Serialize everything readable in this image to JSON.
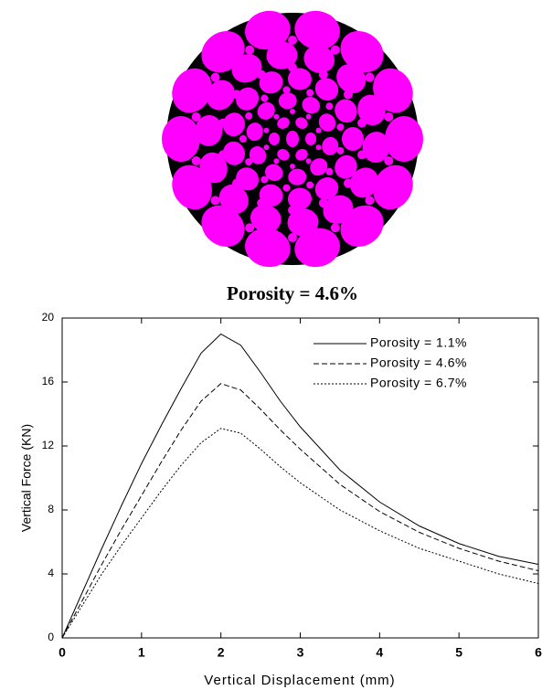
{
  "figure": {
    "caption": "Porosity = 4.6%"
  },
  "chart_data": {
    "type": "line",
    "xlabel": "Vertical Displacement (mm)",
    "ylabel": "Vertical Force (KN)",
    "x": [
      0,
      0.25,
      0.5,
      0.75,
      1,
      1.25,
      1.5,
      1.75,
      2,
      2.25,
      2.5,
      2.75,
      3,
      3.5,
      4,
      4.5,
      5,
      5.5,
      6
    ],
    "series": [
      {
        "name": "Porosity = 1.1%",
        "color": "#000000",
        "dash": "solid",
        "values": [
          0,
          2.8,
          5.6,
          8.3,
          10.9,
          13.3,
          15.6,
          17.8,
          19.0,
          18.3,
          16.6,
          14.8,
          13.2,
          10.5,
          8.5,
          7.0,
          5.9,
          5.1,
          4.6
        ]
      },
      {
        "name": "Porosity = 4.6%",
        "color": "#000000",
        "dash": "dashed",
        "values": [
          0,
          2.3,
          4.6,
          6.8,
          8.9,
          11.0,
          13.0,
          14.8,
          15.9,
          15.5,
          14.3,
          13.0,
          11.8,
          9.6,
          7.9,
          6.6,
          5.6,
          4.8,
          4.2
        ]
      },
      {
        "name": "Porosity = 6.7%",
        "color": "#000000",
        "dash": "dotted",
        "values": [
          0,
          2.0,
          4.0,
          5.8,
          7.5,
          9.2,
          10.8,
          12.2,
          13.1,
          12.8,
          11.8,
          10.7,
          9.7,
          8.0,
          6.7,
          5.6,
          4.8,
          4.0,
          3.4
        ]
      }
    ],
    "xlim": [
      0,
      6
    ],
    "xticks": [
      0,
      1,
      2,
      3,
      4,
      5,
      6
    ],
    "ylim": [
      0,
      20
    ],
    "yticks": [
      0,
      4,
      8,
      12,
      16,
      20
    ],
    "legend": "upper right"
  }
}
